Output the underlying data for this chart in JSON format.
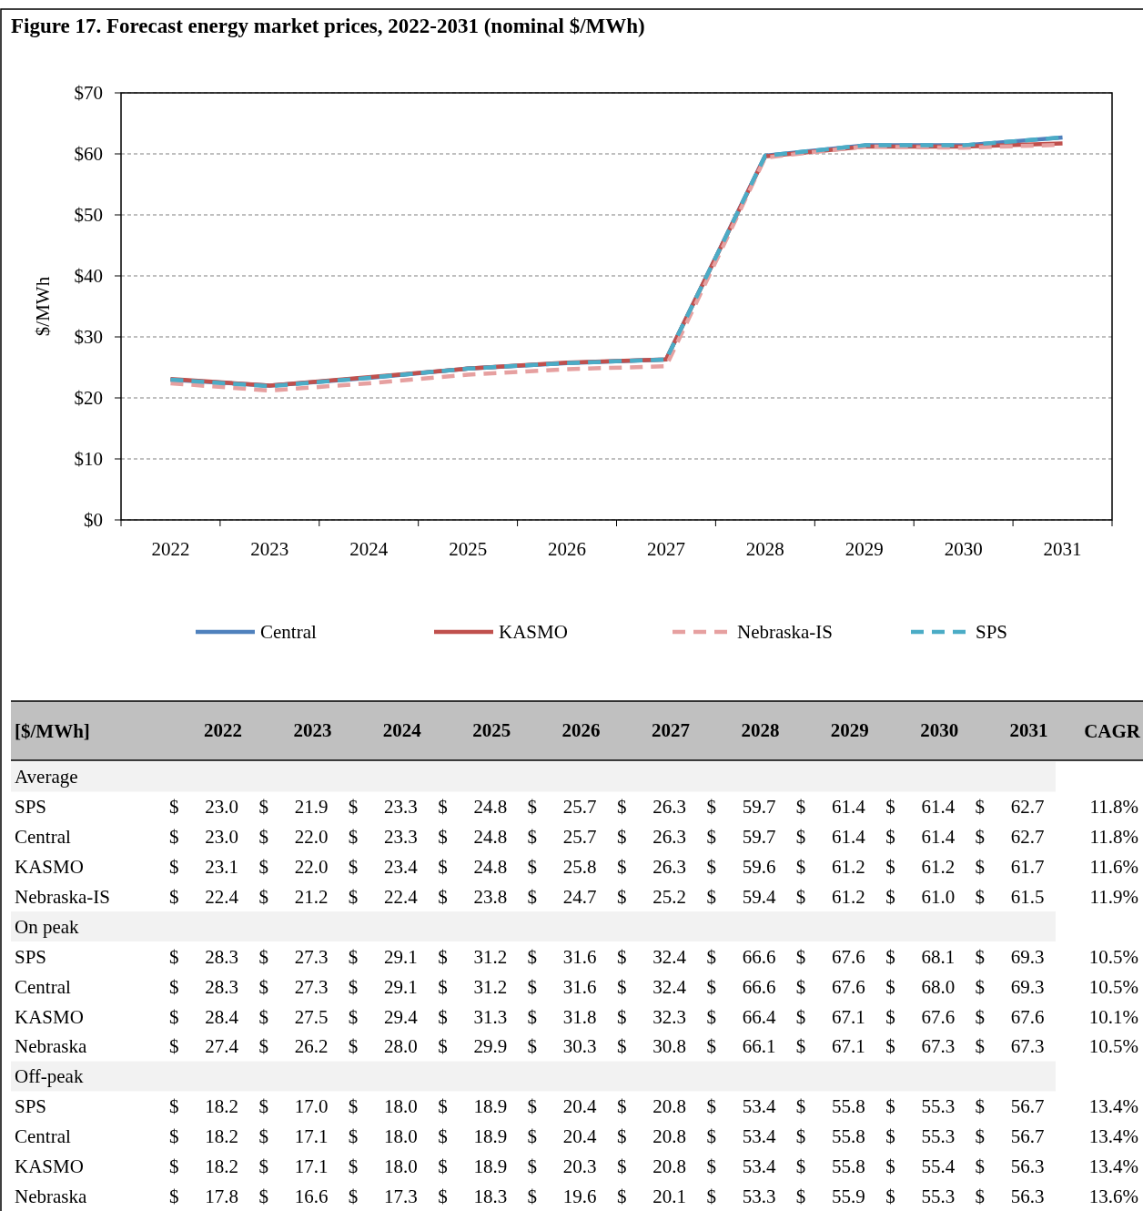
{
  "chart_data": [
    {
      "type": "line",
      "title": "Figure 17. Forecast energy market prices, 2022-2031 (nominal $/MWh)",
      "ylabel": "$/MWh",
      "categories": [
        "2022",
        "2023",
        "2024",
        "2025",
        "2026",
        "2027",
        "2028",
        "2029",
        "2030",
        "2031"
      ],
      "series": [
        {
          "name": "Central",
          "color": "#4f81bd",
          "line_style": "solid",
          "values": [
            23.0,
            22.0,
            23.3,
            24.8,
            25.7,
            26.3,
            59.7,
            61.4,
            61.4,
            62.7
          ]
        },
        {
          "name": "KASMO",
          "color": "#c0504d",
          "line_style": "solid",
          "values": [
            23.1,
            22.0,
            23.4,
            24.8,
            25.8,
            26.3,
            59.6,
            61.2,
            61.2,
            61.7
          ]
        },
        {
          "name": "Nebraska-IS",
          "color": "#e6a0a0",
          "line_style": "dashed",
          "values": [
            22.4,
            21.2,
            22.4,
            23.8,
            24.7,
            25.2,
            59.4,
            61.2,
            61.0,
            61.5
          ]
        },
        {
          "name": "SPS",
          "color": "#4bacc6",
          "line_style": "dashed",
          "values": [
            23.0,
            21.9,
            23.3,
            24.8,
            25.7,
            26.3,
            59.7,
            61.4,
            61.4,
            62.7
          ]
        }
      ],
      "ylim": [
        0,
        70
      ],
      "yticks": [
        {
          "value": 0,
          "label": "$0"
        },
        {
          "value": 10,
          "label": "$10"
        },
        {
          "value": 20,
          "label": "$20"
        },
        {
          "value": 30,
          "label": "$30"
        },
        {
          "value": 40,
          "label": "$40"
        },
        {
          "value": 50,
          "label": "$50"
        },
        {
          "value": 60,
          "label": "$60"
        },
        {
          "value": 70,
          "label": "$70"
        }
      ],
      "grid": "y",
      "legend": "bottom"
    },
    {
      "type": "other",
      "cell_labels": [
        [
          "[$/MWh]",
          "CAGR"
        ],
        [
          "Average"
        ],
        [
          "SPS",
          "$ 23.0",
          "$ 21.9",
          "$ 23.3",
          "$ 24.8",
          "$ 25.7",
          "$ 26.3",
          "$ 59.7",
          "$ 61.4",
          "$ 61.4",
          "$ 62.7",
          "11.8%"
        ],
        [
          "Central",
          "$ 23.0",
          "$ 22.0",
          "$ 23.3",
          "$ 24.8",
          "$ 25.7",
          "$ 26.3",
          "$ 59.7",
          "$ 61.4",
          "$ 61.4",
          "$ 62.7",
          "11.8%"
        ],
        [
          "KASMO",
          "$ 23.1",
          "$ 22.0",
          "$ 23.4",
          "$ 24.8",
          "$ 25.8",
          "$ 26.3",
          "$ 59.6",
          "$ 61.2",
          "$ 61.2",
          "$ 61.7",
          "11.6%"
        ],
        [
          "Nebraska-IS",
          "$ 22.4",
          "$ 21.2",
          "$ 22.4",
          "$ 23.8",
          "$ 24.7",
          "$ 25.2",
          "$ 59.4",
          "$ 61.2",
          "$ 61.0",
          "$ 61.5",
          "11.9%"
        ],
        [
          "On peak"
        ],
        [
          "SPS",
          "$ 28.3",
          "$ 27.3",
          "$ 29.1",
          "$ 31.2",
          "$ 31.6",
          "$ 32.4",
          "$ 66.6",
          "$ 67.6",
          "$ 68.1",
          "$ 69.3",
          "10.5%"
        ],
        [
          "Central",
          "$ 28.3",
          "$ 27.3",
          "$ 29.1",
          "$ 31.2",
          "$ 31.6",
          "$ 32.4",
          "$ 66.6",
          "$ 67.6",
          "$ 68.0",
          "$ 69.3",
          "10.5%"
        ],
        [
          "KASMO",
          "$ 28.4",
          "$ 27.5",
          "$ 29.4",
          "$ 31.3",
          "$ 31.8",
          "$ 32.3",
          "$ 66.4",
          "$ 67.1",
          "$ 67.6",
          "$ 67.6",
          "10.1%"
        ],
        [
          "Nebraska",
          "$ 27.4",
          "$ 26.2",
          "$ 28.0",
          "$ 29.9",
          "$ 30.3",
          "$ 30.8",
          "$ 66.1",
          "$ 67.1",
          "$ 67.3",
          "$ 67.3",
          "10.5%"
        ],
        [
          "Off-peak"
        ],
        [
          "SPS",
          "$ 18.2",
          "$ 17.0",
          "$ 18.0",
          "$ 18.9",
          "$ 20.4",
          "$ 20.8",
          "$ 53.4",
          "$ 55.8",
          "$ 55.3",
          "$ 56.7",
          "13.4%"
        ],
        [
          "Central",
          "$ 18.2",
          "$ 17.1",
          "$ 18.0",
          "$ 18.9",
          "$ 20.4",
          "$ 20.8",
          "$ 53.4",
          "$ 55.8",
          "$ 55.3",
          "$ 56.7",
          "13.4%"
        ],
        [
          "KASMO",
          "$ 18.2",
          "$ 17.1",
          "$ 18.0",
          "$ 18.9",
          "$ 20.3",
          "$ 20.8",
          "$ 53.4",
          "$ 55.8",
          "$ 55.4",
          "$ 56.3",
          "13.4%"
        ],
        [
          "Nebraska",
          "$ 17.8",
          "$ 16.6",
          "$ 17.3",
          "$ 18.3",
          "$ 19.6",
          "$ 20.1",
          "$ 53.3",
          "$ 55.9",
          "$ 55.3",
          "$ 56.3",
          "13.6%"
        ]
      ]
    }
  ]
}
